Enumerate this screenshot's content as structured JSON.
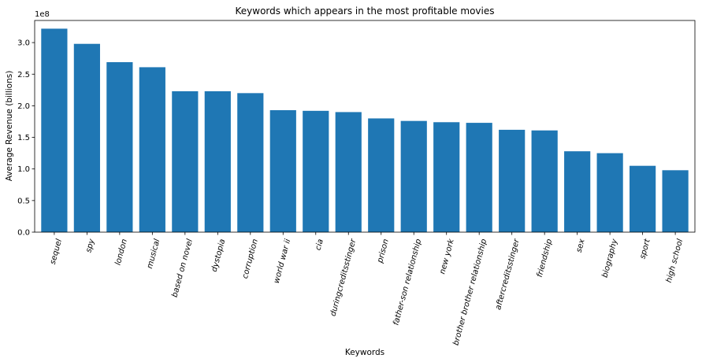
{
  "chart_data": {
    "type": "bar",
    "title": "Keywords which appears in the most profitable movies",
    "xlabel": "Keywords",
    "ylabel": "Average Revenue (billions)",
    "y_offset_label": "1e8",
    "bar_color": "#1f77b4",
    "grid": false,
    "ylim": [
      0,
      3.35
    ],
    "yticks": [
      0.0,
      0.5,
      1.0,
      1.5,
      2.0,
      2.5,
      3.0
    ],
    "ytick_labels": [
      "0.0",
      "0.5",
      "1.0",
      "1.5",
      "2.0",
      "2.5",
      "3.0"
    ],
    "categories": [
      "sequel",
      "spy",
      "london",
      "musical",
      "based on novel",
      "dystopia",
      "corruption",
      "world war ii",
      "cia",
      "duringcreditsstinger",
      "prison",
      "father-son relationship",
      "new york",
      "brother brother relationship",
      "aftercreditsstinger",
      "friendship",
      "sex",
      "biography",
      "sport",
      "high school"
    ],
    "values": [
      3.22,
      2.98,
      2.69,
      2.61,
      2.23,
      2.23,
      2.2,
      1.93,
      1.92,
      1.9,
      1.8,
      1.76,
      1.74,
      1.73,
      1.62,
      1.61,
      1.28,
      1.25,
      1.05,
      0.98
    ]
  }
}
